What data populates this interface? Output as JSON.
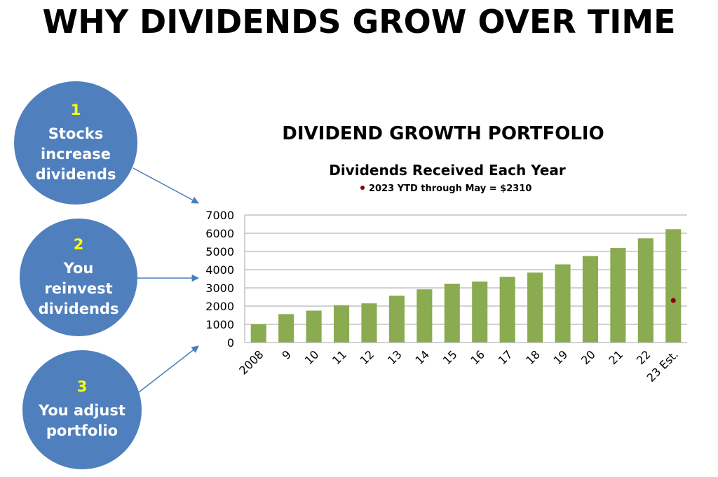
{
  "headline": "WHY DIVIDENDS GROW OVER TIME",
  "reasons": [
    {
      "number": "1",
      "text_lines": [
        "Stocks",
        "increase",
        "dividends"
      ]
    },
    {
      "number": "2",
      "text_lines": [
        "You",
        "reinvest",
        "dividends"
      ]
    },
    {
      "number": "3",
      "text_lines": [
        "You adjust",
        "portfolio"
      ]
    }
  ],
  "portfolio_title": "DIVIDEND GROWTH PORTFOLIO",
  "colors": {
    "circle": "#4f7fbd",
    "number": "#ffff00",
    "bar": "#8aab50",
    "marker": "#8b0000",
    "arrow": "#4a7ebb"
  },
  "chart_data": {
    "type": "bar",
    "title": "Dividends Received Each Year",
    "annotation": "2023 YTD through May = $2310",
    "categories": [
      "2008",
      "9",
      "10",
      "11",
      "12",
      "13",
      "14",
      "15",
      "16",
      "17",
      "18",
      "19",
      "20",
      "21",
      "22",
      "23 Est."
    ],
    "values": [
      1000,
      1560,
      1750,
      2050,
      2150,
      2570,
      2920,
      3230,
      3350,
      3610,
      3840,
      4290,
      4750,
      5190,
      5720,
      6220
    ],
    "marker": {
      "category": "23 Est.",
      "value": 2310
    },
    "ylim": [
      0,
      7000
    ],
    "yticks": [
      0,
      1000,
      2000,
      3000,
      4000,
      5000,
      6000,
      7000
    ],
    "grid": true,
    "legend": "none"
  }
}
